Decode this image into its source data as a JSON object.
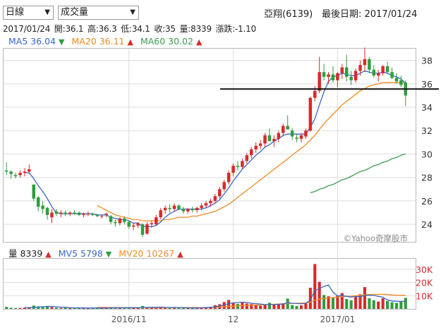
{
  "controls": {
    "period_select": "日線",
    "indicator_select": "成交量"
  },
  "header": {
    "stock": "亞翔(6139)",
    "last_date_label": "最後日期: 2017/01/24"
  },
  "ohlc": {
    "date": "2017/01/24",
    "open": "開:36.1",
    "high": "高:36.3",
    "low": "低:34.1",
    "close": "收:35",
    "volume": "量:8339",
    "change": "漲跌:-1.10"
  },
  "ma_legend": [
    {
      "label": "MA5 36.04",
      "color": "#3a66c4",
      "arrow": "▼",
      "arrow_color": "#2e9e3e"
    },
    {
      "label": "MA20 36.11",
      "color": "#f08a24",
      "arrow": "▲",
      "arrow_color": "#d62b2b"
    },
    {
      "label": "MA60 30.02",
      "color": "#3f9a4f",
      "arrow": "▲",
      "arrow_color": "#d62b2b"
    }
  ],
  "vol_legend": [
    {
      "label": "量 8339",
      "color": "#222222",
      "arrow": "▲",
      "arrow_color": "#d62b2b"
    },
    {
      "label": "MV5 5798",
      "color": "#3a66c4",
      "arrow": "▼",
      "arrow_color": "#2e9e3e"
    },
    {
      "label": "MV20 10267",
      "color": "#f08a24",
      "arrow": "▲",
      "arrow_color": "#d62b2b"
    }
  ],
  "watermark": "©Yahoo奇摩股市",
  "colors": {
    "up": "#d62b2b",
    "down": "#2e9e3e",
    "ma5": "#3a66c4",
    "ma20": "#f08a24",
    "ma60": "#3f9a4f",
    "grid": "#dddddd"
  },
  "chart_data": [
    {
      "type": "candlestick",
      "title": "",
      "ylim": [
        22.5,
        39
      ],
      "y_ticks": [
        "38",
        "36",
        "34",
        "32",
        "30",
        "28",
        "26",
        "24"
      ],
      "resistance_line": 35.55,
      "candles": [
        [
          28.6,
          29.3,
          28.2,
          28.5
        ],
        [
          28.5,
          28.6,
          27.9,
          28.3
        ],
        [
          28.2,
          28.4,
          27.9,
          28.1
        ],
        [
          28.2,
          28.6,
          28.0,
          28.4
        ],
        [
          28.4,
          28.8,
          28.1,
          28.5
        ],
        [
          28.5,
          29.1,
          28.3,
          28.7
        ],
        [
          27.4,
          27.4,
          26.0,
          26.2
        ],
        [
          26.3,
          26.4,
          25.1,
          25.5
        ],
        [
          25.6,
          26.0,
          24.9,
          25.3
        ],
        [
          25.4,
          25.5,
          24.4,
          24.8
        ],
        [
          24.6,
          25.3,
          24.1,
          25.0
        ],
        [
          25.1,
          25.3,
          24.7,
          24.9
        ],
        [
          24.9,
          25.2,
          24.6,
          25.0
        ],
        [
          25.0,
          25.2,
          24.7,
          24.9
        ],
        [
          24.9,
          25.1,
          24.7,
          25.0
        ],
        [
          25.0,
          25.2,
          24.8,
          24.9
        ],
        [
          25.0,
          25.1,
          24.7,
          24.8
        ],
        [
          24.8,
          25.0,
          24.6,
          24.9
        ],
        [
          24.9,
          25.1,
          24.7,
          24.9
        ],
        [
          24.9,
          25.0,
          24.7,
          24.8
        ],
        [
          24.8,
          24.9,
          24.6,
          24.7
        ],
        [
          24.7,
          24.8,
          24.5,
          24.7
        ],
        [
          24.8,
          25.0,
          24.6,
          24.9
        ],
        [
          24.7,
          24.8,
          24.0,
          24.2
        ],
        [
          24.2,
          24.4,
          23.8,
          24.1
        ],
        [
          24.1,
          24.6,
          23.9,
          24.5
        ],
        [
          24.5,
          24.7,
          24.0,
          24.2
        ],
        [
          24.2,
          24.3,
          23.6,
          23.8
        ],
        [
          23.8,
          24.1,
          23.5,
          23.9
        ],
        [
          23.9,
          24.2,
          23.7,
          24.1
        ],
        [
          24.0,
          24.1,
          22.9,
          23.1
        ],
        [
          23.2,
          24.2,
          23.1,
          24.0
        ],
        [
          24.0,
          24.3,
          23.7,
          24.1
        ],
        [
          24.0,
          24.8,
          23.9,
          24.6
        ],
        [
          24.6,
          25.4,
          24.4,
          25.2
        ],
        [
          25.2,
          25.6,
          24.9,
          25.4
        ],
        [
          25.4,
          25.7,
          25.0,
          25.3
        ],
        [
          25.3,
          25.8,
          25.1,
          25.6
        ],
        [
          25.6,
          25.7,
          25.2,
          25.3
        ],
        [
          25.3,
          25.5,
          24.9,
          25.1
        ],
        [
          25.1,
          25.4,
          24.9,
          25.3
        ],
        [
          25.3,
          25.5,
          25.0,
          25.2
        ],
        [
          25.2,
          25.5,
          25.0,
          25.4
        ],
        [
          25.4,
          25.8,
          25.2,
          25.6
        ],
        [
          25.6,
          26.0,
          25.4,
          25.8
        ],
        [
          25.8,
          26.2,
          25.5,
          26.0
        ],
        [
          26.0,
          26.6,
          25.8,
          26.4
        ],
        [
          26.4,
          27.2,
          26.2,
          27.0
        ],
        [
          27.0,
          27.8,
          26.8,
          27.6
        ],
        [
          27.6,
          28.6,
          27.4,
          28.4
        ],
        [
          28.4,
          29.2,
          28.1,
          29.0
        ],
        [
          29.0,
          29.4,
          28.6,
          28.9
        ],
        [
          28.9,
          29.6,
          28.7,
          29.4
        ],
        [
          29.4,
          30.1,
          29.2,
          29.9
        ],
        [
          29.9,
          30.6,
          29.6,
          30.4
        ],
        [
          30.4,
          31.0,
          30.1,
          30.7
        ],
        [
          30.7,
          31.2,
          30.4,
          30.9
        ],
        [
          30.9,
          31.8,
          30.6,
          31.6
        ],
        [
          31.6,
          32.2,
          31.2,
          31.1
        ],
        [
          31.1,
          31.6,
          30.6,
          31.3
        ],
        [
          31.3,
          32.0,
          31.0,
          31.8
        ],
        [
          31.8,
          32.6,
          31.5,
          32.4
        ],
        [
          32.4,
          33.3,
          32.1,
          32.1
        ],
        [
          32.0,
          32.2,
          31.2,
          31.5
        ],
        [
          31.4,
          31.7,
          31.0,
          31.3
        ],
        [
          31.3,
          31.8,
          31.0,
          31.6
        ],
        [
          31.5,
          32.2,
          31.3,
          32.0
        ],
        [
          32.0,
          34.9,
          31.9,
          34.8
        ],
        [
          34.8,
          35.8,
          34.5,
          35.4
        ],
        [
          35.4,
          38.3,
          35.2,
          37.0
        ],
        [
          37.0,
          37.7,
          36.3,
          36.6
        ],
        [
          36.6,
          37.0,
          36.0,
          36.8
        ],
        [
          36.8,
          37.5,
          36.1,
          36.3
        ],
        [
          36.3,
          37.0,
          35.7,
          36.9
        ],
        [
          36.9,
          37.7,
          36.4,
          37.4
        ],
        [
          37.4,
          38.5,
          36.2,
          36.6
        ],
        [
          36.6,
          37.1,
          35.9,
          36.3
        ],
        [
          36.3,
          37.3,
          36.1,
          37.1
        ],
        [
          37.1,
          38.0,
          36.7,
          37.6
        ],
        [
          37.6,
          39.1,
          37.0,
          38.1
        ],
        [
          38.1,
          38.3,
          36.9,
          37.2
        ],
        [
          37.2,
          37.6,
          36.5,
          36.7
        ],
        [
          36.7,
          37.2,
          36.2,
          36.9
        ],
        [
          36.9,
          37.6,
          36.7,
          37.5
        ],
        [
          37.5,
          37.9,
          36.9,
          37.0
        ],
        [
          37.0,
          37.4,
          36.4,
          36.5
        ],
        [
          36.5,
          36.9,
          36.0,
          36.2
        ],
        [
          36.3,
          36.7,
          35.7,
          35.9
        ],
        [
          36.1,
          36.3,
          34.1,
          35.0
        ]
      ],
      "ma_series": [
        {
          "name": "MA5",
          "values": [
            null,
            null,
            null,
            null,
            28.4,
            28.4,
            27.9,
            27.3,
            26.8,
            26.2,
            25.5,
            25.0,
            24.9,
            24.9,
            24.9,
            24.9,
            24.9,
            24.9,
            24.9,
            24.9,
            24.8,
            24.8,
            24.8,
            24.6,
            24.5,
            24.4,
            24.4,
            24.3,
            24.1,
            24.1,
            23.8,
            23.8,
            23.8,
            23.9,
            24.2,
            24.6,
            24.9,
            25.1,
            25.3,
            25.3,
            25.3,
            25.3,
            25.3,
            25.3,
            25.4,
            25.6,
            25.8,
            26.1,
            26.6,
            27.1,
            27.7,
            28.2,
            28.7,
            29.1,
            29.5,
            29.9,
            30.2,
            30.6,
            30.8,
            31.1,
            31.3,
            31.6,
            31.7,
            31.7,
            31.7,
            31.7,
            31.7,
            32.3,
            33.0,
            34.2,
            35.3,
            36.2,
            36.6,
            36.7,
            36.9,
            36.8,
            36.7,
            36.7,
            36.9,
            37.1,
            37.0,
            36.9,
            36.9,
            37.0,
            36.9,
            36.7,
            36.6,
            36.4,
            36.04
          ]
        },
        {
          "name": "MA20",
          "values": [
            null,
            null,
            null,
            null,
            null,
            null,
            null,
            null,
            null,
            null,
            null,
            null,
            null,
            null,
            null,
            null,
            null,
            null,
            null,
            null,
            25.6,
            25.4,
            25.2,
            25.0,
            24.8,
            24.7,
            24.6,
            24.5,
            24.4,
            24.4,
            24.3,
            24.3,
            24.3,
            24.3,
            24.3,
            24.4,
            24.4,
            24.5,
            24.6,
            24.6,
            24.6,
            24.7,
            24.7,
            24.8,
            24.9,
            25.0,
            25.1,
            25.3,
            25.5,
            25.7,
            26.0,
            26.3,
            26.6,
            26.9,
            27.2,
            27.5,
            27.8,
            28.1,
            28.4,
            28.7,
            29.0,
            29.3,
            29.6,
            29.9,
            30.2,
            30.5,
            30.8,
            31.2,
            31.6,
            32.1,
            32.6,
            33.0,
            33.4,
            33.8,
            34.2,
            34.5,
            34.8,
            35.1,
            35.4,
            35.6,
            35.8,
            35.9,
            36.0,
            36.1,
            36.1,
            36.1,
            36.1,
            36.1,
            36.11
          ]
        },
        {
          "name": "MA60",
          "values": [
            null,
            null,
            null,
            null,
            null,
            null,
            null,
            null,
            null,
            null,
            null,
            null,
            null,
            null,
            null,
            null,
            null,
            null,
            null,
            null,
            null,
            null,
            null,
            null,
            null,
            null,
            null,
            null,
            null,
            null,
            null,
            null,
            null,
            null,
            null,
            null,
            null,
            null,
            null,
            null,
            null,
            null,
            null,
            null,
            null,
            null,
            null,
            null,
            null,
            null,
            null,
            null,
            null,
            null,
            null,
            null,
            null,
            null,
            null,
            null,
            null,
            null,
            null,
            null,
            null,
            null,
            null,
            26.7,
            26.8,
            27.0,
            27.1,
            27.3,
            27.4,
            27.6,
            27.8,
            27.9,
            28.1,
            28.3,
            28.5,
            28.6,
            28.8,
            29.0,
            29.1,
            29.3,
            29.4,
            29.6,
            29.7,
            29.9,
            30.02
          ]
        }
      ]
    },
    {
      "type": "bar",
      "title": "",
      "ylim": [
        0,
        38000
      ],
      "y_ticks": [
        "30K",
        "20K",
        "10K"
      ],
      "x_ticks": [
        {
          "label": "2016/11",
          "index": 27
        },
        {
          "label": "12",
          "index": 50
        },
        {
          "label": "2017/01",
          "index": 73
        }
      ],
      "volume": [
        1500,
        800,
        600,
        700,
        900,
        1200,
        2500,
        1800,
        1500,
        2200,
        1300,
        900,
        700,
        800,
        600,
        700,
        900,
        600,
        500,
        700,
        800,
        600,
        700,
        900,
        1100,
        700,
        800,
        1000,
        800,
        700,
        2200,
        1200,
        900,
        1000,
        1500,
        1100,
        800,
        900,
        700,
        600,
        800,
        700,
        900,
        1100,
        1300,
        1600,
        2800,
        3500,
        5200,
        6800,
        4500,
        3800,
        5200,
        4100,
        3600,
        2800,
        2400,
        3200,
        4600,
        3100,
        3500,
        4200,
        7800,
        2900,
        2100,
        2600,
        4000,
        16000,
        34000,
        20500,
        10500,
        9500,
        8500,
        10000,
        12000,
        7500,
        6500,
        9000,
        11000,
        16500,
        8000,
        6500,
        5500,
        8000,
        6000,
        5000,
        4500,
        5500,
        8339
      ],
      "mv5": [
        null,
        null,
        null,
        null,
        900,
        840,
        1180,
        1420,
        1580,
        1840,
        1860,
        1540,
        1320,
        1180,
        860,
        740,
        740,
        720,
        660,
        680,
        700,
        640,
        660,
        740,
        820,
        820,
        840,
        900,
        880,
        880,
        1100,
        1140,
        1160,
        1160,
        1360,
        1140,
        1060,
        1060,
        1000,
        940,
        760,
        740,
        740,
        820,
        960,
        1120,
        1540,
        2140,
        3000,
        3980,
        4560,
        4760,
        5100,
        4920,
        4240,
        3900,
        3620,
        3220,
        3320,
        3220,
        3360,
        3720,
        4640,
        4300,
        4060,
        3800,
        4120,
        6720,
        13820,
        15420,
        17000,
        18100,
        12700,
        9800,
        10100,
        9500,
        8900,
        9400,
        9200,
        10100,
        10400,
        10200,
        9500,
        8800,
        6800,
        6000,
        5800,
        5700,
        5798
      ],
      "mv20": [
        null,
        null,
        null,
        null,
        null,
        null,
        null,
        null,
        null,
        null,
        null,
        null,
        null,
        null,
        null,
        null,
        null,
        null,
        null,
        null,
        1200,
        1150,
        1100,
        1050,
        1000,
        950,
        900,
        880,
        860,
        850,
        880,
        900,
        920,
        930,
        960,
        980,
        990,
        1000,
        1000,
        990,
        980,
        980,
        990,
        1000,
        1030,
        1080,
        1180,
        1330,
        1560,
        1850,
        2050,
        2250,
        2470,
        2640,
        2790,
        2900,
        3020,
        3170,
        3360,
        3500,
        3640,
        3800,
        4070,
        4200,
        4260,
        4330,
        4450,
        5080,
        6480,
        7400,
        7880,
        8230,
        8550,
        8900,
        9260,
        9450,
        9620,
        9890,
        10200,
        10620,
        10850,
        10980,
        11000,
        11080,
        10850,
        10550,
        10400,
        10300,
        10267
      ]
    }
  ]
}
